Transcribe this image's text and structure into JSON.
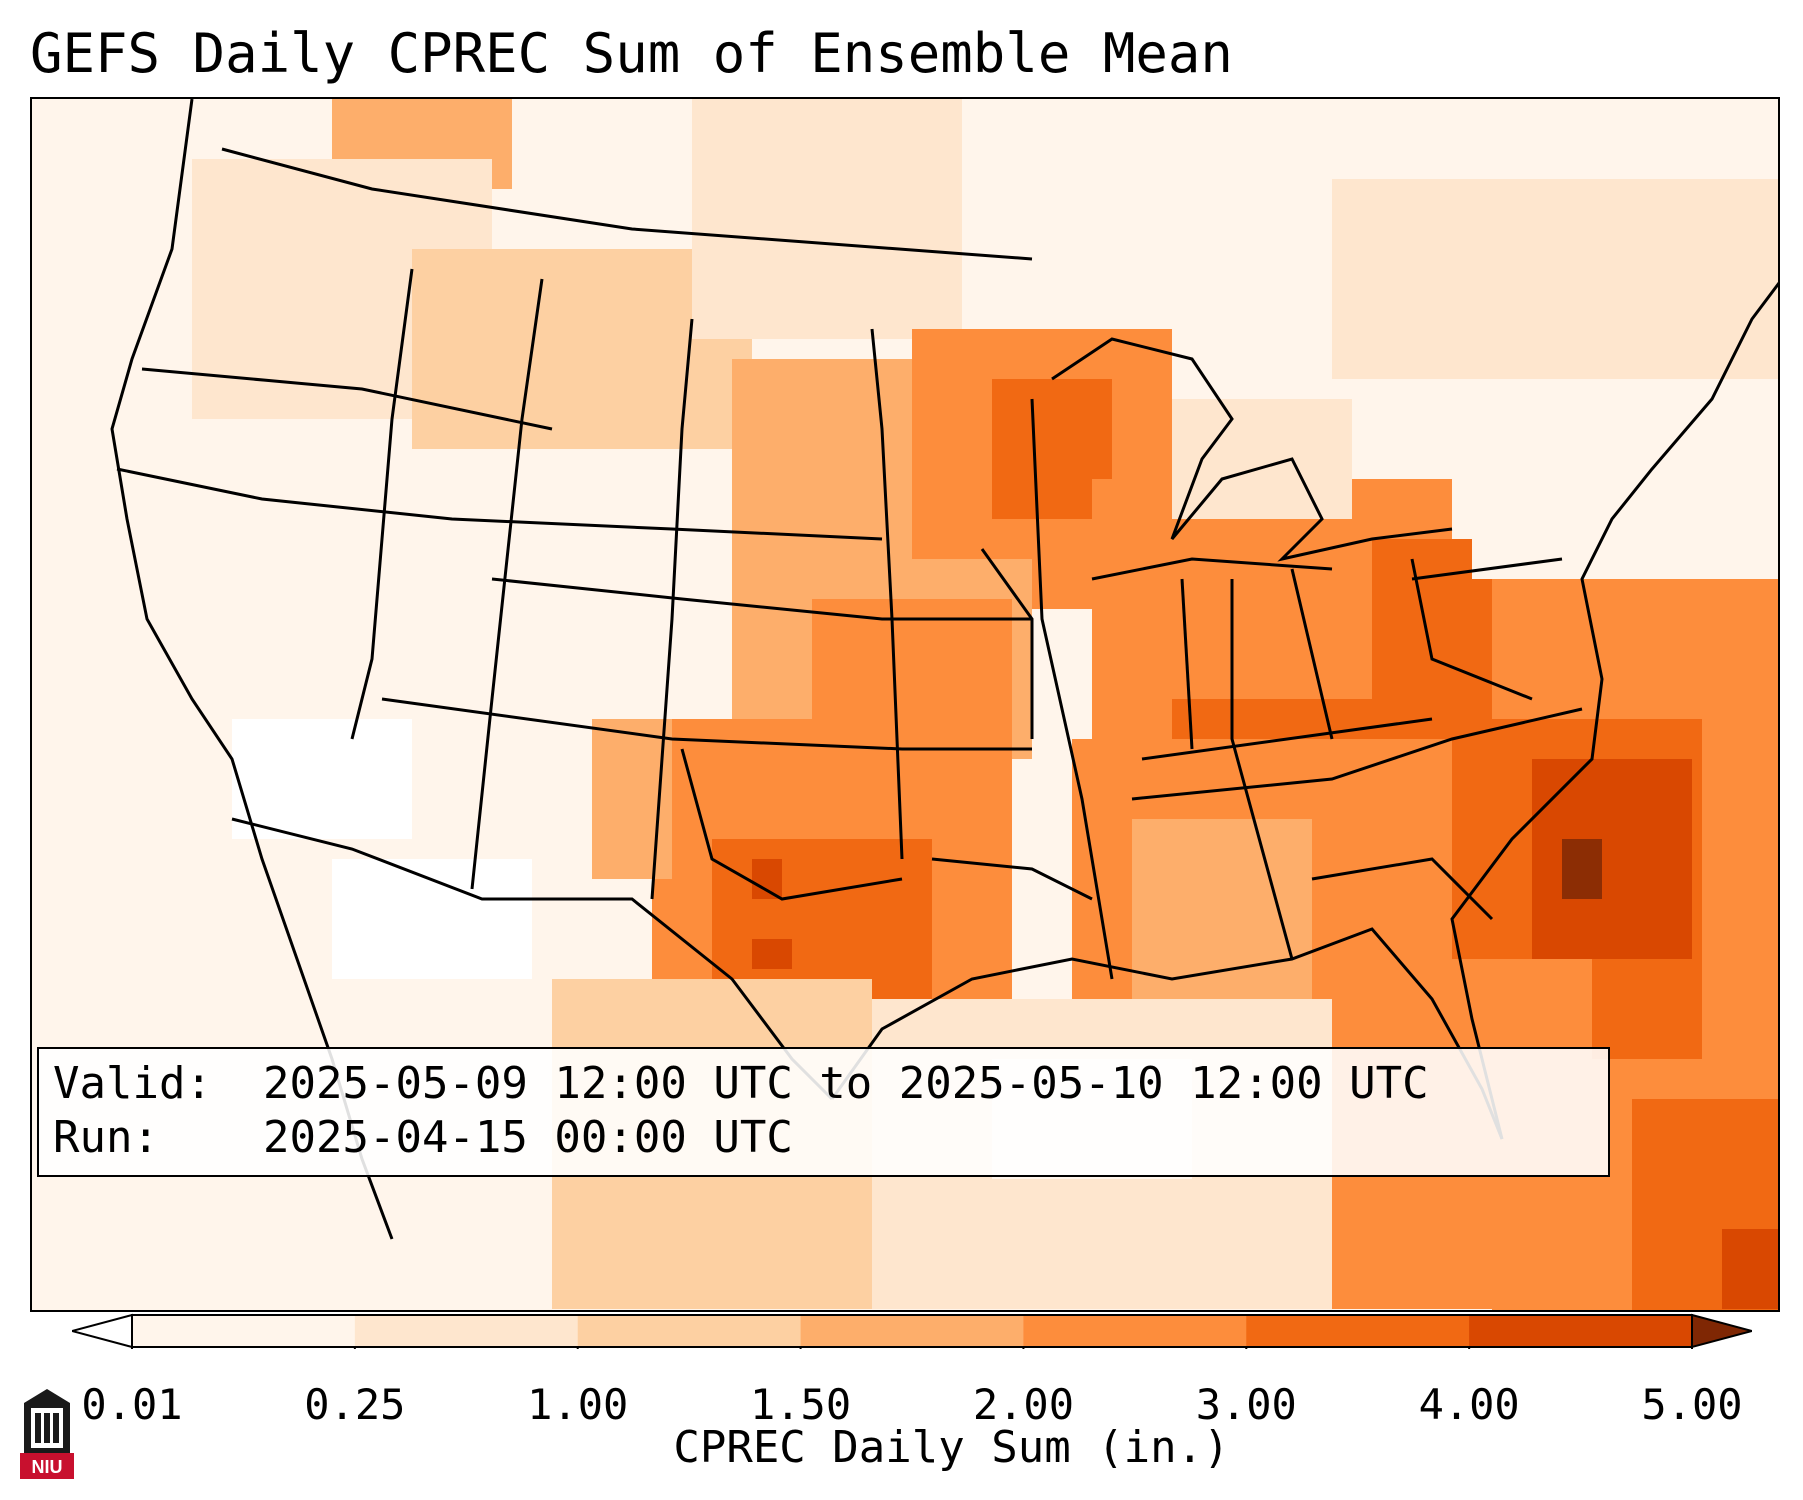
{
  "title": "GEFS Daily CPREC Sum of Ensemble Mean",
  "info": {
    "valid_key": "Valid:",
    "valid_value": "2025-05-09 12:00 UTC to 2025-05-10 12:00 UTC",
    "run_key": "Run:",
    "run_value": "2025-04-15 00:00 UTC"
  },
  "colorbar": {
    "label": "CPREC Daily Sum (in.)",
    "ticks": [
      "0.01",
      "0.25",
      "1.00",
      "1.50",
      "2.00",
      "3.00",
      "4.00",
      "5.00"
    ],
    "colors": [
      "#fff5eb",
      "#fee6ce",
      "#fdd0a2",
      "#fdae6b",
      "#fd8d3c",
      "#f16913",
      "#d94801",
      "#8c2d04"
    ],
    "under_color": "#ffffff",
    "over_color": "#7f2704"
  },
  "logo": {
    "text": "NIU",
    "color": "#c8102e"
  }
}
